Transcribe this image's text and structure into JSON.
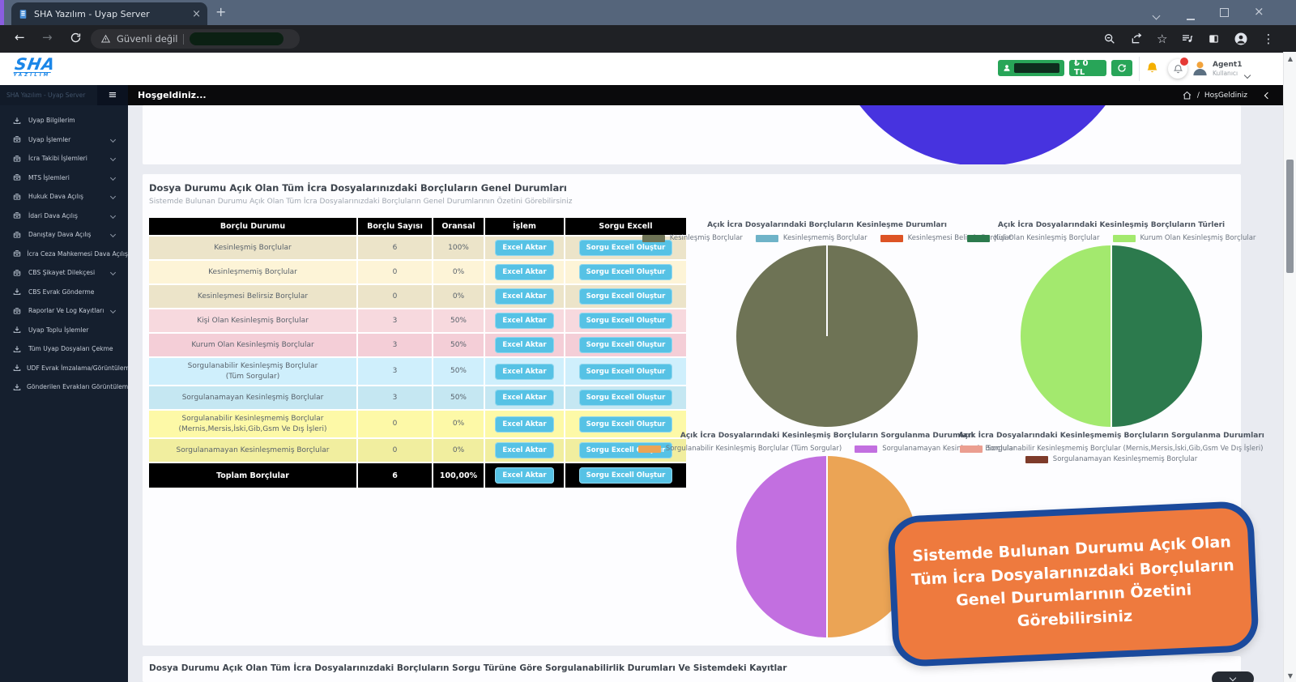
{
  "browser": {
    "tab_title": "SHA Yazılım - Uyap Server",
    "security_label": "Güvenli değil"
  },
  "app_header": {
    "logo_main": "SHA",
    "logo_sub": "YAZILIM",
    "balance_label": "₺ 0 TL",
    "user_name": "Agent1",
    "user_role": "Kullanıcı"
  },
  "sidebar": {
    "header": "SHA Yazılım - Uyap Server",
    "items": [
      {
        "label": "Uyap Bilgilerim",
        "icon": "download",
        "expandable": false
      },
      {
        "label": "Uyap İşlemler",
        "icon": "box",
        "expandable": true
      },
      {
        "label": "İcra Takibi İşlemleri",
        "icon": "box",
        "expandable": true
      },
      {
        "label": "MTS İşlemleri",
        "icon": "box",
        "expandable": true
      },
      {
        "label": "Hukuk Dava Açılış",
        "icon": "box",
        "expandable": true
      },
      {
        "label": "İdari Dava Açılış",
        "icon": "box",
        "expandable": true
      },
      {
        "label": "Danıştay Dava Açılış",
        "icon": "box",
        "expandable": true
      },
      {
        "label": "İcra Ceza Mahkemesi Dava Açılış",
        "icon": "box",
        "expandable": false
      },
      {
        "label": "CBS Şikayet Dilekçesi",
        "icon": "box",
        "expandable": true
      },
      {
        "label": "CBS Evrak Gönderme",
        "icon": "download",
        "expandable": false
      },
      {
        "label": "Raporlar Ve Log Kayıtları",
        "icon": "box",
        "expandable": true
      },
      {
        "label": "Uyap Toplu İşlemler",
        "icon": "download",
        "expandable": false
      },
      {
        "label": "Tüm Uyap Dosyaları Çekme",
        "icon": "download",
        "expandable": false
      },
      {
        "label": "UDF Evrak İmzalama/Görüntüleme",
        "icon": "download",
        "expandable": false
      },
      {
        "label": "Gönderilen Evrakları Görüntüleme",
        "icon": "download",
        "expandable": false
      }
    ]
  },
  "pagebar": {
    "tab_label": "Hoşgeldiniz...",
    "breadcrumb_sep": "/",
    "breadcrumb": "HoşGeldiniz"
  },
  "section": {
    "title": "Dosya Durumu Açık Olan Tüm İcra Dosyalarınızdaki Borçluların Genel Durumları",
    "subtitle": "Sistemde Bulunan Durumu Açık Olan Tüm İcra Dosyalarınızdaki Borçluların Genel Durumlarının Özetini Görebilirsiniz"
  },
  "table": {
    "headers": [
      "Borçlu Durumu",
      "Borçlu Sayısı",
      "Oransal",
      "İşlem",
      "Sorgu Excell"
    ],
    "action_label": "Excel Aktar",
    "query_label": "Sorgu Excell Oluştur",
    "rows": [
      {
        "label": "Kesinleşmiş Borçlular",
        "label2": "",
        "count": "6",
        "ratio": "100%",
        "bg": "#ece4c9"
      },
      {
        "label": "Kesinleşmemiş Borçlular",
        "label2": "",
        "count": "0",
        "ratio": "0%",
        "bg": "#fdf4d7"
      },
      {
        "label": "Kesinleşmesi Belirsiz Borçlular",
        "label2": "",
        "count": "0",
        "ratio": "0%",
        "bg": "#ece4c9"
      },
      {
        "label": "Kişi Olan Kesinleşmiş Borçlular",
        "label2": "",
        "count": "3",
        "ratio": "50%",
        "bg": "#f7d9de"
      },
      {
        "label": "Kurum Olan Kesinleşmiş Borçlular",
        "label2": "",
        "count": "3",
        "ratio": "50%",
        "bg": "#f4ced7"
      },
      {
        "label": "Sorgulanabilir Kesinleşmiş Borçlular",
        "label2": "(Tüm Sorgular)",
        "count": "3",
        "ratio": "50%",
        "bg": "#cfeffc"
      },
      {
        "label": "Sorgulanamayan Kesinleşmiş Borçlular",
        "label2": "",
        "count": "3",
        "ratio": "50%",
        "bg": "#c5e7f2"
      },
      {
        "label": "Sorgulanabilir Kesinleşmemiş Borçlular",
        "label2": "(Mernis,Mersis,İski,Gib,Gsm Ve Dış İşleri)",
        "count": "0",
        "ratio": "0%",
        "bg": "#fdf9a7"
      },
      {
        "label": "Sorgulanamayan Kesinleşmemiş Borçlular",
        "label2": "",
        "count": "0",
        "ratio": "0%",
        "bg": "#f1ee9f"
      }
    ],
    "footer": {
      "label": "Toplam Borçlular",
      "count": "6",
      "ratio": "100,00%"
    }
  },
  "chart_data": [
    {
      "type": "pie",
      "title": "Açık İcra Dosyalarındaki Borçluların Kesinleşme Durumları",
      "labels": [
        "Kesinleşmiş Borçlular",
        "Kesinleşmemiş Borçlular",
        "Kesinleşmesi Belirsiz Borçlular"
      ],
      "values": [
        6,
        0,
        0
      ],
      "colors": [
        "#6e7355",
        "#6fb3c8",
        "#dd5425"
      ],
      "legend_position": "top"
    },
    {
      "type": "pie",
      "title": "Açık İcra Dosyalarındaki Kesinleşmiş Borçluların Türleri",
      "labels": [
        "Kişi Olan Kesinleşmiş Borçlular",
        "Kurum Olan Kesinleşmiş Borçlular"
      ],
      "values": [
        3,
        3
      ],
      "colors": [
        "#2c7a4d",
        "#a3e96e"
      ],
      "legend_position": "top"
    },
    {
      "type": "pie",
      "title": "Açık İcra Dosyalarındaki Kesinleşmiş Borçluların Sorgulanma Durumları",
      "labels": [
        "Sorgulanabilir Kesinleşmiş Borçlular (Tüm Sorgular)",
        "Sorgulanamayan Kesinleşmiş Borçlular"
      ],
      "values": [
        3,
        3
      ],
      "colors": [
        "#eba455",
        "#c26fe0"
      ],
      "legend_position": "top"
    },
    {
      "type": "pie",
      "title": "Açık İcra Dosyalarındaki Kesinleşmemiş Borçluların Sorgulanma Durumları",
      "labels": [
        "Sorgulanabilir Kesinleşmemiş Borçlular (Mernis,Mersis,İski,Gib,Gsm Ve Dış İşleri)",
        "Sorgulanamayan Kesinleşmemiş Borçlular"
      ],
      "values": [
        0,
        0
      ],
      "colors": [
        "#eb9e90",
        "#7e3b2a"
      ],
      "legend_position": "top"
    }
  ],
  "callout": {
    "text": "Sistemde Bulunan Durumu Açık Olan Tüm İcra Dosyalarınızdaki Borçluların Genel Durumlarının Özetini Görebilirsiniz"
  },
  "bottom_section": {
    "title": "Dosya Durumu Açık Olan Tüm İcra Dosyalarınızdaki Borçluların Sorgu Türüne Göre Sorgulanabilirlik Durumları Ve Sistemdeki Kayıtlar"
  },
  "colors": {
    "accent_green": "#28a558",
    "button_blue": "#56c2e5",
    "callout_orange": "#ee7a3e",
    "callout_border": "#1b4a9c",
    "top_circle_blue": "#4733df",
    "table_header_bg": "#000000"
  }
}
